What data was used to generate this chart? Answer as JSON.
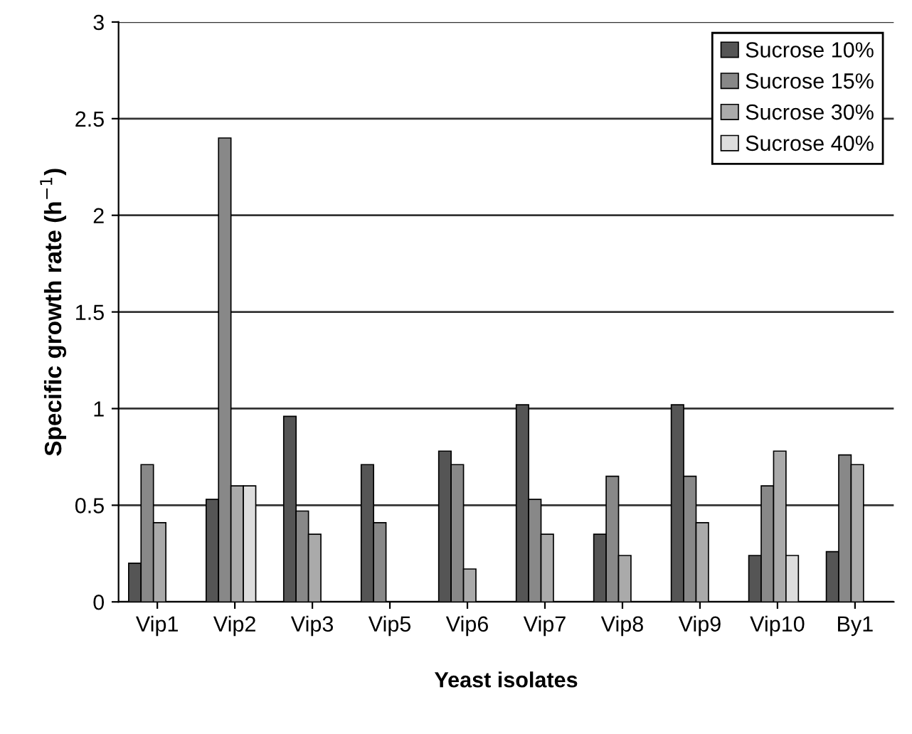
{
  "chart_data": {
    "type": "bar",
    "xlabel": "Yeast isolates",
    "ylabel": "Specific growth rate (h$^{−1}$)",
    "categories": [
      "Vip1",
      "Vip2",
      "Vip3",
      "Vip5",
      "Vip6",
      "Vip7",
      "Vip8",
      "Vip9",
      "Vip10",
      "By1"
    ],
    "series": [
      {
        "name": "Sucrose 10%",
        "color": "#555555",
        "values": [
          0.2,
          0.53,
          0.96,
          0.71,
          0.78,
          1.02,
          0.35,
          1.02,
          0.24,
          0.26
        ]
      },
      {
        "name": "Sucrose 15%",
        "color": "#888888",
        "values": [
          0.71,
          2.4,
          0.47,
          0.41,
          0.71,
          0.53,
          0.65,
          0.65,
          0.6,
          0.76
        ]
      },
      {
        "name": "Sucrose 30%",
        "color": "#aaaaaa",
        "values": [
          0.41,
          0.6,
          0.35,
          null,
          0.17,
          0.35,
          0.24,
          0.41,
          0.78,
          0.71
        ]
      },
      {
        "name": "Sucrose 40%",
        "color": "#dddddd",
        "values": [
          null,
          0.6,
          null,
          null,
          null,
          null,
          null,
          null,
          0.24,
          null
        ]
      }
    ],
    "ylim": [
      0,
      3
    ],
    "yticks": [
      0,
      0.5,
      1,
      1.5,
      2,
      2.5,
      3
    ],
    "grid": "y",
    "legend": "top right"
  }
}
